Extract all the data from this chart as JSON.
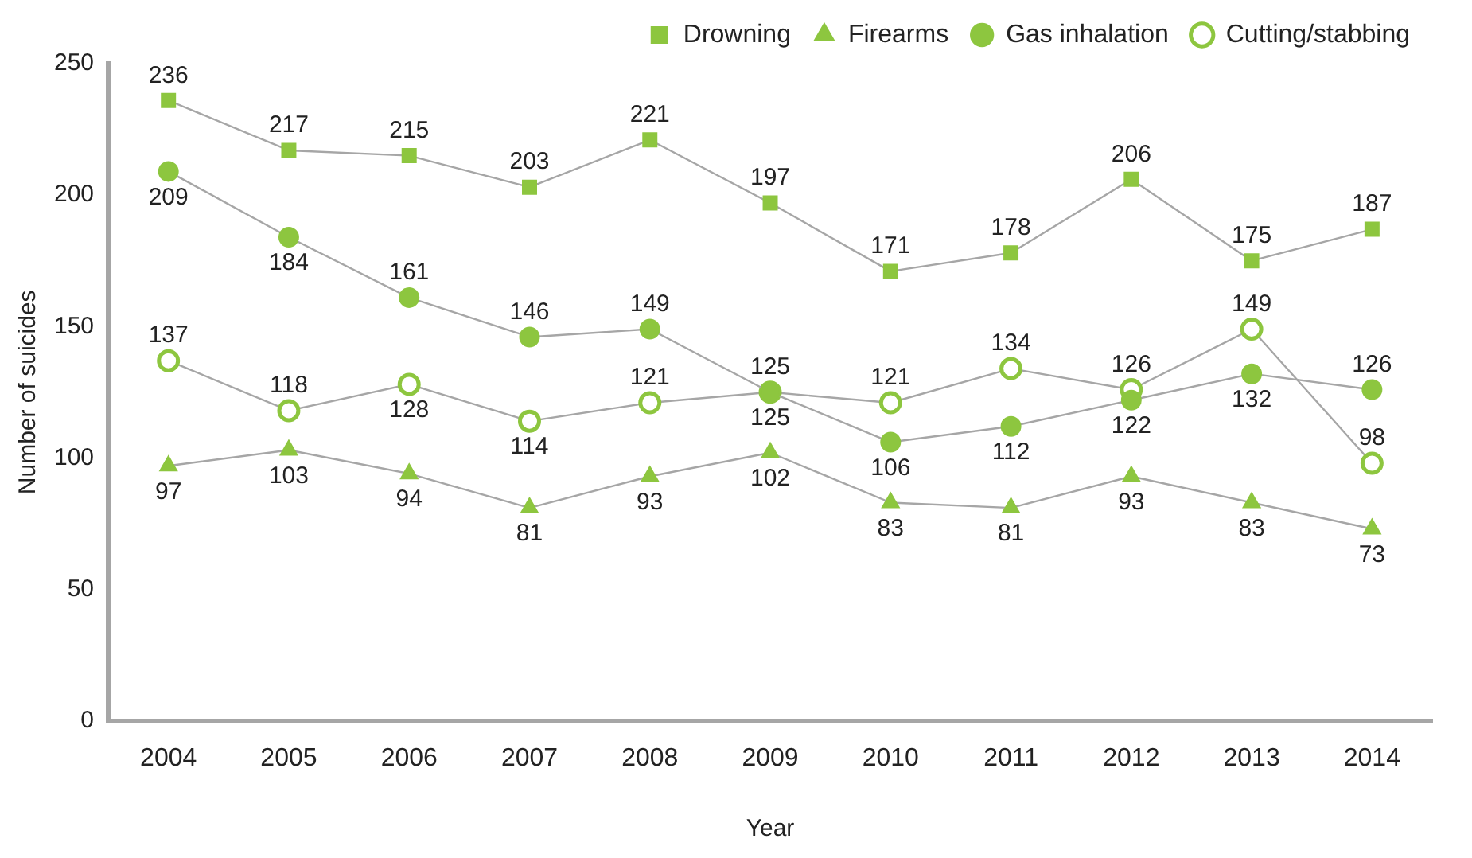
{
  "chart_data": {
    "type": "line",
    "xlabel": "Year",
    "ylabel": "Number of suicides",
    "categories": [
      "2004",
      "2005",
      "2006",
      "2007",
      "2008",
      "2009",
      "2010",
      "2011",
      "2012",
      "2013",
      "2014"
    ],
    "series": [
      {
        "name": "Drowning",
        "color": "#8dc63f",
        "marker": "square",
        "values": [
          236,
          217,
          215,
          203,
          221,
          197,
          171,
          178,
          206,
          175,
          187
        ]
      },
      {
        "name": "Firearms",
        "color": "#8dc63f",
        "marker": "triangle",
        "values": [
          97,
          103,
          94,
          81,
          93,
          102,
          83,
          81,
          93,
          83,
          73
        ]
      },
      {
        "name": "Gas inhalation",
        "color": "#8dc63f",
        "marker": "circle",
        "values": [
          209,
          184,
          161,
          146,
          149,
          125,
          106,
          112,
          122,
          132,
          126
        ]
      },
      {
        "name": "Cutting/stabbing",
        "color": "#8dc63f",
        "marker": "circle",
        "values": [
          137,
          118,
          128,
          114,
          121,
          125,
          121,
          134,
          126,
          149,
          98
        ]
      }
    ],
    "ylim": [
      0,
      250
    ],
    "yticks": [
      0,
      50,
      100,
      150,
      200,
      250
    ],
    "grid": false,
    "legend": "top right",
    "data_labels": true
  }
}
